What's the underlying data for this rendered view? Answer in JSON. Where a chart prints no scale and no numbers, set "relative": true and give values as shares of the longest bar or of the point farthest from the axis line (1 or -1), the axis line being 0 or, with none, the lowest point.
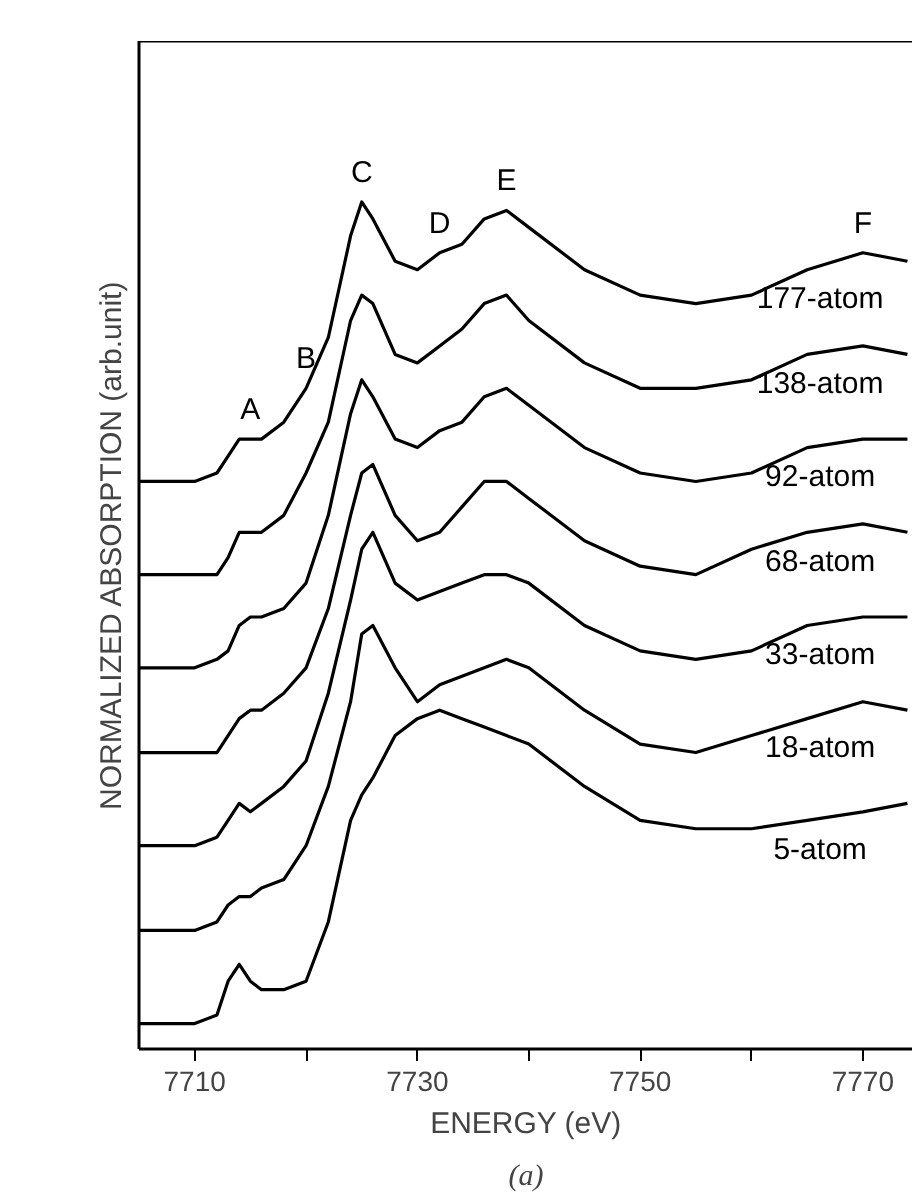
{
  "chart_data": {
    "type": "line",
    "relative": true,
    "xlabel": "ENERGY (eV)",
    "ylabel": "NORMALIZED ABSORPTION (arb.unit)",
    "xlim": [
      7705,
      7774.5
    ],
    "xticks": [
      7710,
      {
        "value": 7720,
        "label": null
      },
      7730,
      {
        "value": 7740,
        "label": null
      },
      7750,
      {
        "value": 7760,
        "label": null
      },
      7770
    ],
    "tick_labels": "x",
    "grid": false,
    "line_style": "solid",
    "marker": "none",
    "x": [
      7705,
      7710,
      7712,
      7713,
      7714,
      7715,
      7716,
      7718,
      7720,
      7722,
      7724,
      7725,
      7726,
      7728,
      7730,
      7732,
      7734,
      7736,
      7738,
      7740,
      7745,
      7750,
      7755,
      7760,
      7765,
      7770,
      7774
    ],
    "series": [
      {
        "name": "177-atom",
        "color": "#000000",
        "values": [
          0.67,
          0.67,
          0.68,
          0.7,
          0.72,
          0.72,
          0.72,
          0.74,
          0.78,
          0.84,
          0.96,
          1,
          0.98,
          0.93,
          0.92,
          0.94,
          0.95,
          0.98,
          0.99,
          0.97,
          0.92,
          0.89,
          0.88,
          0.89,
          0.92,
          0.94,
          0.93
        ]
      },
      {
        "name": "138-atom",
        "color": "#000000",
        "values": [
          0.56,
          0.56,
          0.56,
          0.58,
          0.61,
          0.61,
          0.61,
          0.63,
          0.68,
          0.74,
          0.86,
          0.89,
          0.88,
          0.82,
          0.81,
          0.83,
          0.85,
          0.88,
          0.89,
          0.86,
          0.81,
          0.78,
          0.78,
          0.79,
          0.82,
          0.83,
          0.82
        ]
      },
      {
        "name": "92-atom",
        "color": "#000000",
        "values": [
          0.45,
          0.45,
          0.46,
          0.47,
          0.5,
          0.51,
          0.51,
          0.52,
          0.55,
          0.63,
          0.75,
          0.79,
          0.77,
          0.72,
          0.71,
          0.73,
          0.74,
          0.77,
          0.78,
          0.76,
          0.71,
          0.68,
          0.67,
          0.68,
          0.71,
          0.72,
          0.72
        ]
      },
      {
        "name": "68-atom",
        "color": "#000000",
        "values": [
          0.35,
          0.35,
          0.35,
          0.37,
          0.39,
          0.4,
          0.4,
          0.42,
          0.45,
          0.52,
          0.63,
          0.68,
          0.69,
          0.63,
          0.6,
          0.61,
          0.64,
          0.67,
          0.67,
          0.65,
          0.6,
          0.57,
          0.56,
          0.59,
          0.61,
          0.62,
          0.61
        ]
      },
      {
        "name": "33-atom",
        "color": "#000000",
        "values": [
          0.24,
          0.24,
          0.25,
          0.27,
          0.29,
          0.28,
          0.29,
          0.31,
          0.34,
          0.42,
          0.53,
          0.59,
          0.61,
          0.55,
          0.53,
          0.54,
          0.55,
          0.56,
          0.56,
          0.55,
          0.5,
          0.47,
          0.46,
          0.47,
          0.5,
          0.51,
          0.51
        ]
      },
      {
        "name": "18-atom",
        "color": "#000000",
        "values": [
          0.14,
          0.14,
          0.15,
          0.17,
          0.18,
          0.18,
          0.19,
          0.2,
          0.24,
          0.31,
          0.41,
          0.49,
          0.5,
          0.45,
          0.41,
          0.43,
          0.44,
          0.45,
          0.46,
          0.45,
          0.4,
          0.36,
          0.35,
          0.37,
          0.39,
          0.41,
          0.4
        ]
      },
      {
        "name": "5-atom",
        "color": "#000000",
        "values": [
          0.03,
          0.03,
          0.04,
          0.08,
          0.1,
          0.08,
          0.07,
          0.07,
          0.08,
          0.15,
          0.27,
          0.3,
          0.32,
          0.37,
          0.39,
          0.4,
          0.39,
          0.38,
          0.37,
          0.36,
          0.31,
          0.27,
          0.26,
          0.26,
          0.27,
          0.28,
          0.29
        ]
      }
    ],
    "annotations": [
      {
        "text": "A",
        "x": 7715,
        "y": 0.72
      },
      {
        "text": "B",
        "x": 7720,
        "y": 0.78
      },
      {
        "text": "C",
        "x": 7725,
        "y": 1
      },
      {
        "text": "D",
        "x": 7732,
        "y": 0.94
      },
      {
        "text": "E",
        "x": 7738,
        "y": 0.99
      },
      {
        "text": "F",
        "x": 7770,
        "y": 0.94
      },
      "(a)"
    ]
  }
}
